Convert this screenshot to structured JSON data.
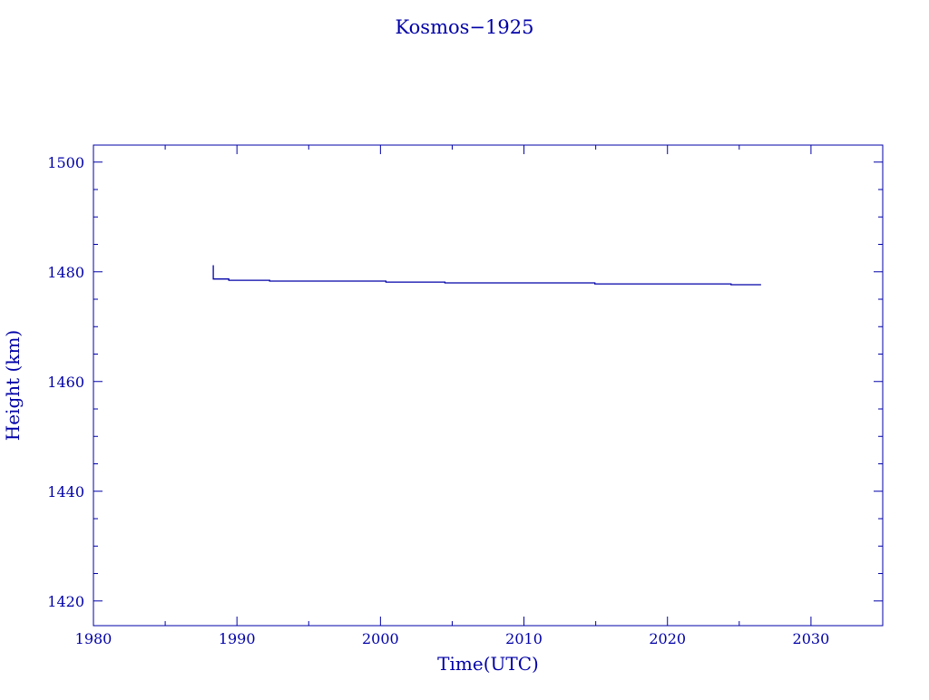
{
  "chart_data": {
    "type": "line",
    "title": "Kosmos−1925",
    "xlabel": "Time(UTC)",
    "ylabel": "Height (km)",
    "xlim": [
      1980,
      2035
    ],
    "ylim": [
      1415.5,
      1503.1
    ],
    "xticks": [
      1980,
      1990,
      2000,
      2010,
      2020,
      2030
    ],
    "xtick_labels": [
      "1980",
      "1990",
      "2000",
      "2010",
      "2020",
      "2030"
    ],
    "yticks": [
      1420,
      1440,
      1460,
      1480,
      1500
    ],
    "ytick_labels": [
      "1420",
      "1440",
      "1460",
      "1480",
      "1500"
    ],
    "grid": false,
    "color": "#0000a8",
    "series": [
      {
        "x": [
          1988.35,
          1988.35,
          1988.35,
          1989.43,
          1989.43,
          1992.28,
          1992.28,
          2000.38,
          2000.38,
          2004.49,
          2004.49,
          2014.94,
          2014.94,
          2024.43,
          2024.43,
          2026.52
        ],
        "y": [
          1481.2,
          1478.68,
          1478.68,
          1478.68,
          1478.46,
          1478.46,
          1478.3,
          1478.3,
          1478.13,
          1478.13,
          1477.97,
          1477.97,
          1477.8,
          1477.8,
          1477.64,
          1477.64
        ]
      }
    ]
  }
}
